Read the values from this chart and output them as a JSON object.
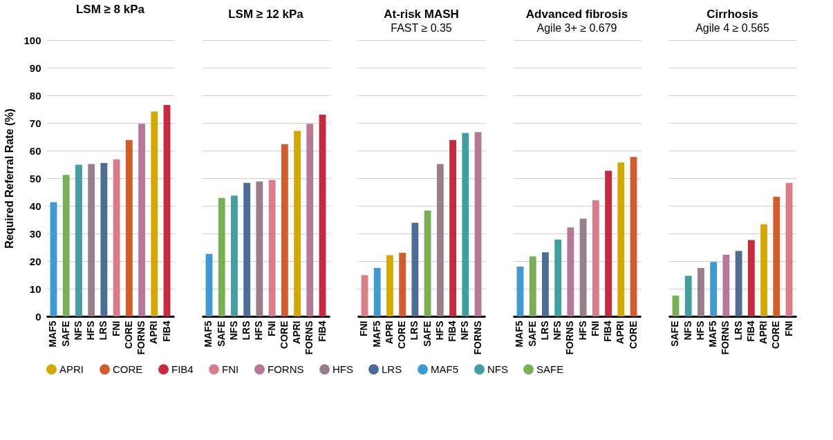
{
  "chart_data": [
    {
      "type": "bar",
      "title": "LSM ≥ 8 kPa",
      "ylabel": "Required Referral Rate (%)",
      "categories": [
        "MAF5",
        "SAFE",
        "NFS",
        "HFS",
        "LRS",
        "FNI",
        "CORE",
        "FORNS",
        "APRI",
        "FIB4"
      ],
      "ylim": [
        0,
        100
      ],
      "yticks": [
        0,
        10,
        20,
        30,
        40,
        50,
        60,
        70,
        80,
        90,
        100
      ],
      "grid": "y",
      "legend": "bottom",
      "series": [
        {
          "name": "APRI",
          "color": "#d4a800",
          "values": [
            null,
            null,
            null,
            null,
            null,
            null,
            null,
            null,
            74.1,
            null
          ]
        },
        {
          "name": "CORE",
          "color": "#d45c2c",
          "values": [
            null,
            null,
            null,
            null,
            null,
            null,
            63.8,
            null,
            null,
            null
          ]
        },
        {
          "name": "FIB4",
          "color": "#c72a3f",
          "values": [
            null,
            null,
            null,
            null,
            null,
            null,
            null,
            null,
            null,
            76.5
          ]
        },
        {
          "name": "FNI",
          "color": "#d97d8a",
          "values": [
            null,
            null,
            null,
            null,
            null,
            56.8,
            null,
            null,
            null,
            null
          ]
        },
        {
          "name": "FORNS",
          "color": "#b77898",
          "values": [
            null,
            null,
            null,
            null,
            null,
            null,
            null,
            69.7,
            null,
            null
          ]
        },
        {
          "name": "HFS",
          "color": "#9a7d8a",
          "values": [
            null,
            null,
            null,
            55.1,
            null,
            null,
            null,
            null,
            null,
            null
          ]
        },
        {
          "name": "LRS",
          "color": "#4e6d96",
          "values": [
            null,
            null,
            null,
            null,
            55.5,
            null,
            null,
            null,
            null,
            null
          ]
        },
        {
          "name": "MAF5",
          "color": "#3e9ad2",
          "values": [
            41.3,
            null,
            null,
            null,
            null,
            null,
            null,
            null,
            null,
            null
          ]
        },
        {
          "name": "NFS",
          "color": "#40a0a0",
          "values": [
            null,
            null,
            54.9,
            null,
            null,
            null,
            null,
            null,
            null,
            null
          ]
        },
        {
          "name": "SAFE",
          "color": "#7ab055",
          "values": [
            null,
            51.2,
            null,
            null,
            null,
            null,
            null,
            null,
            null,
            null
          ]
        }
      ]
    },
    {
      "type": "bar",
      "title": "LSM ≥ 12 kPa",
      "categories": [
        "MAF5",
        "SAFE",
        "NFS",
        "LRS",
        "HFS",
        "FNI",
        "CORE",
        "APRI",
        "FORNS",
        "FIB4"
      ],
      "ylim": [
        0,
        100
      ],
      "yticks": [
        0,
        10,
        20,
        30,
        40,
        50,
        60,
        70,
        80,
        90,
        100
      ],
      "grid": "y",
      "tick_labels": "x",
      "legend": "bottom",
      "series": [
        {
          "name": "APRI",
          "color": "#d4a800",
          "values": [
            null,
            null,
            null,
            null,
            null,
            null,
            null,
            67.1,
            null,
            null
          ]
        },
        {
          "name": "CORE",
          "color": "#d45c2c",
          "values": [
            null,
            null,
            null,
            null,
            null,
            null,
            62.3,
            null,
            null,
            null
          ]
        },
        {
          "name": "FIB4",
          "color": "#c72a3f",
          "values": [
            null,
            null,
            null,
            null,
            null,
            null,
            null,
            null,
            null,
            73.0
          ]
        },
        {
          "name": "FNI",
          "color": "#d97d8a",
          "values": [
            null,
            null,
            null,
            null,
            null,
            49.4,
            null,
            null,
            null,
            null
          ]
        },
        {
          "name": "FORNS",
          "color": "#b77898",
          "values": [
            null,
            null,
            null,
            null,
            null,
            null,
            null,
            null,
            69.7,
            null
          ]
        },
        {
          "name": "HFS",
          "color": "#9a7d8a",
          "values": [
            null,
            null,
            null,
            null,
            48.8,
            null,
            null,
            null,
            null,
            null
          ]
        },
        {
          "name": "LRS",
          "color": "#4e6d96",
          "values": [
            null,
            null,
            null,
            48.3,
            null,
            null,
            null,
            null,
            null,
            null
          ]
        },
        {
          "name": "MAF5",
          "color": "#3e9ad2",
          "values": [
            22.6,
            null,
            null,
            null,
            null,
            null,
            null,
            null,
            null,
            null
          ]
        },
        {
          "name": "NFS",
          "color": "#40a0a0",
          "values": [
            null,
            null,
            43.7,
            null,
            null,
            null,
            null,
            null,
            null,
            null
          ]
        },
        {
          "name": "SAFE",
          "color": "#7ab055",
          "values": [
            null,
            42.9,
            null,
            null,
            null,
            null,
            null,
            null,
            null,
            null
          ]
        }
      ]
    },
    {
      "type": "bar",
      "title": "At-risk MASH",
      "subtitle": "FAST ≥ 0.35",
      "categories": [
        "FNI",
        "MAF5",
        "APRI",
        "CORE",
        "LRS",
        "SAFE",
        "HFS",
        "FIB4",
        "NFS",
        "FORNS"
      ],
      "ylim": [
        0,
        100
      ],
      "yticks": [
        0,
        10,
        20,
        30,
        40,
        50,
        60,
        70,
        80,
        90,
        100
      ],
      "grid": "y",
      "tick_labels": "x",
      "legend": "bottom",
      "series": [
        {
          "name": "APRI",
          "color": "#d4a800",
          "values": [
            null,
            null,
            22.1,
            null,
            null,
            null,
            null,
            null,
            null,
            null
          ]
        },
        {
          "name": "CORE",
          "color": "#d45c2c",
          "values": [
            null,
            null,
            null,
            23.0,
            null,
            null,
            null,
            null,
            null,
            null
          ]
        },
        {
          "name": "FIB4",
          "color": "#c72a3f",
          "values": [
            null,
            null,
            null,
            null,
            null,
            null,
            null,
            63.8,
            null,
            null
          ]
        },
        {
          "name": "FNI",
          "color": "#d97d8a",
          "values": [
            14.9,
            null,
            null,
            null,
            null,
            null,
            null,
            null,
            null,
            null
          ]
        },
        {
          "name": "FORNS",
          "color": "#b77898",
          "values": [
            null,
            null,
            null,
            null,
            null,
            null,
            null,
            null,
            null,
            66.7
          ]
        },
        {
          "name": "HFS",
          "color": "#9a7d8a",
          "values": [
            null,
            null,
            null,
            null,
            null,
            null,
            55.1,
            null,
            null,
            null
          ]
        },
        {
          "name": "LRS",
          "color": "#4e6d96",
          "values": [
            null,
            null,
            null,
            null,
            33.9,
            null,
            null,
            null,
            null,
            null
          ]
        },
        {
          "name": "MAF5",
          "color": "#3e9ad2",
          "values": [
            null,
            17.5,
            null,
            null,
            null,
            null,
            null,
            null,
            null,
            null
          ]
        },
        {
          "name": "NFS",
          "color": "#40a0a0",
          "values": [
            null,
            null,
            null,
            null,
            null,
            null,
            null,
            null,
            66.4,
            null
          ]
        },
        {
          "name": "SAFE",
          "color": "#7ab055",
          "values": [
            null,
            null,
            null,
            null,
            null,
            38.3,
            null,
            null,
            null,
            null
          ]
        }
      ]
    },
    {
      "type": "bar",
      "title": "Advanced fibrosis",
      "subtitle": "Agile 3+ ≥ 0.679",
      "categories": [
        "MAF5",
        "SAFE",
        "LRS",
        "NFS",
        "FORNS",
        "HFS",
        "FNI",
        "FIB4",
        "APRI",
        "CORE"
      ],
      "ylim": [
        0,
        100
      ],
      "yticks": [
        0,
        10,
        20,
        30,
        40,
        50,
        60,
        70,
        80,
        90,
        100
      ],
      "grid": "y",
      "tick_labels": "x",
      "legend": "bottom",
      "series": [
        {
          "name": "APRI",
          "color": "#d4a800",
          "values": [
            null,
            null,
            null,
            null,
            null,
            null,
            null,
            null,
            55.7,
            null
          ]
        },
        {
          "name": "CORE",
          "color": "#d45c2c",
          "values": [
            null,
            null,
            null,
            null,
            null,
            null,
            null,
            null,
            null,
            57.7
          ]
        },
        {
          "name": "FIB4",
          "color": "#c72a3f",
          "values": [
            null,
            null,
            null,
            null,
            null,
            null,
            null,
            52.7,
            null,
            null
          ]
        },
        {
          "name": "FNI",
          "color": "#d97d8a",
          "values": [
            null,
            null,
            null,
            null,
            null,
            null,
            42.0,
            null,
            null,
            null
          ]
        },
        {
          "name": "FORNS",
          "color": "#b77898",
          "values": [
            null,
            null,
            null,
            null,
            32.2,
            null,
            null,
            null,
            null,
            null
          ]
        },
        {
          "name": "HFS",
          "color": "#9a7d8a",
          "values": [
            null,
            null,
            null,
            null,
            null,
            35.4,
            null,
            null,
            null,
            null
          ]
        },
        {
          "name": "LRS",
          "color": "#4e6d96",
          "values": [
            null,
            null,
            23.2,
            null,
            null,
            null,
            null,
            null,
            null,
            null
          ]
        },
        {
          "name": "MAF5",
          "color": "#3e9ad2",
          "values": [
            18.0,
            null,
            null,
            null,
            null,
            null,
            null,
            null,
            null,
            null
          ]
        },
        {
          "name": "NFS",
          "color": "#40a0a0",
          "values": [
            null,
            null,
            null,
            27.8,
            null,
            null,
            null,
            null,
            null,
            null
          ]
        },
        {
          "name": "SAFE",
          "color": "#7ab055",
          "values": [
            null,
            21.7,
            null,
            null,
            null,
            null,
            null,
            null,
            null,
            null
          ]
        }
      ]
    },
    {
      "type": "bar",
      "title": "Cirrhosis",
      "subtitle": "Agile 4 ≥ 0.565",
      "categories": [
        "SAFE",
        "NFS",
        "HFS",
        "MAF5",
        "FORNS",
        "LRS",
        "FIB4",
        "APRI",
        "CORE",
        "FNI"
      ],
      "ylim": [
        0,
        100
      ],
      "yticks": [
        0,
        10,
        20,
        30,
        40,
        50,
        60,
        70,
        80,
        90,
        100
      ],
      "grid": "y",
      "tick_labels": "x",
      "legend": "bottom",
      "series": [
        {
          "name": "APRI",
          "color": "#d4a800",
          "values": [
            null,
            null,
            null,
            null,
            null,
            null,
            null,
            33.3,
            null,
            null
          ]
        },
        {
          "name": "CORE",
          "color": "#d45c2c",
          "values": [
            null,
            null,
            null,
            null,
            null,
            null,
            null,
            null,
            43.3,
            null
          ]
        },
        {
          "name": "FIB4",
          "color": "#c72a3f",
          "values": [
            null,
            null,
            null,
            null,
            null,
            null,
            27.6,
            null,
            null,
            null
          ]
        },
        {
          "name": "FNI",
          "color": "#d97d8a",
          "values": [
            null,
            null,
            null,
            null,
            null,
            null,
            null,
            null,
            null,
            48.3
          ]
        },
        {
          "name": "FORNS",
          "color": "#b77898",
          "values": [
            null,
            null,
            null,
            null,
            22.3,
            null,
            null,
            null,
            null,
            null
          ]
        },
        {
          "name": "HFS",
          "color": "#9a7d8a",
          "values": [
            null,
            null,
            17.5,
            null,
            null,
            null,
            null,
            null,
            null,
            null
          ]
        },
        {
          "name": "LRS",
          "color": "#4e6d96",
          "values": [
            null,
            null,
            null,
            null,
            null,
            23.7,
            null,
            null,
            null,
            null
          ]
        },
        {
          "name": "MAF5",
          "color": "#3e9ad2",
          "values": [
            null,
            null,
            null,
            19.7,
            null,
            null,
            null,
            null,
            null,
            null
          ]
        },
        {
          "name": "NFS",
          "color": "#40a0a0",
          "values": [
            null,
            14.7,
            null,
            null,
            null,
            null,
            null,
            null,
            null,
            null
          ]
        },
        {
          "name": "SAFE",
          "color": "#7ab055",
          "values": [
            7.5,
            null,
            null,
            null,
            null,
            null,
            null,
            null,
            null,
            null
          ]
        }
      ]
    }
  ]
}
